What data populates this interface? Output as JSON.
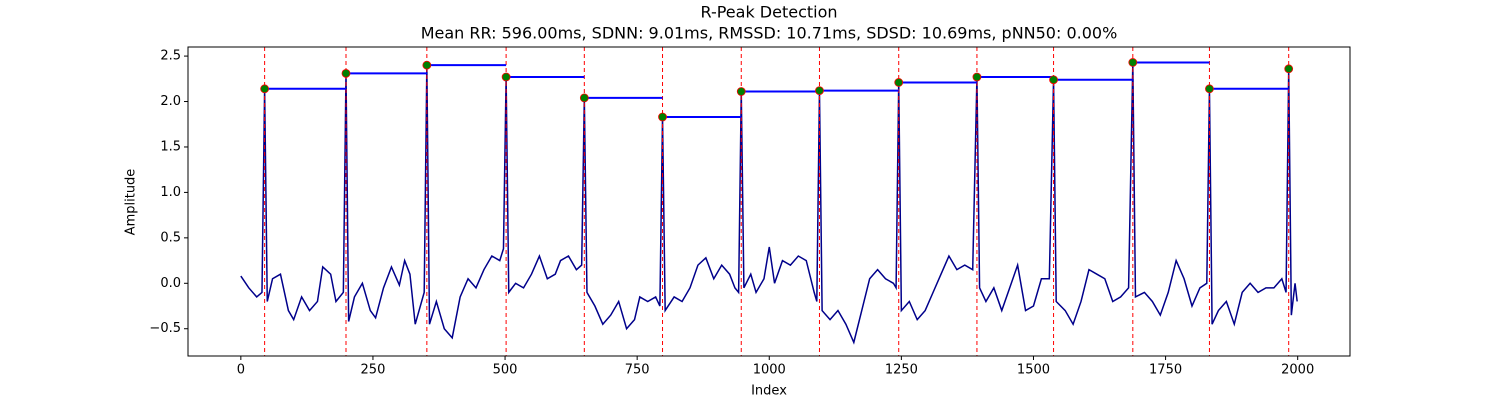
{
  "chart_data": {
    "type": "line",
    "title": "R-Peak Detection",
    "subtitle": "Mean RR: 596.00ms, SDNN: 9.01ms, RMSSD: 10.71ms, SDSD: 10.69ms, pNN50: 0.00%",
    "x_label": "Index",
    "y_label": "Amplitude",
    "x": [
      0,
      15,
      30,
      40,
      45,
      50,
      60,
      75,
      90,
      100,
      115,
      130,
      145,
      155,
      170,
      180,
      194,
      199,
      204,
      215,
      230,
      245,
      255,
      270,
      285,
      300,
      310,
      320,
      330,
      347,
      352,
      357,
      370,
      385,
      400,
      415,
      430,
      445,
      460,
      475,
      490,
      497,
      502,
      507,
      520,
      535,
      550,
      565,
      580,
      595,
      605,
      620,
      635,
      645,
      650,
      655,
      670,
      685,
      700,
      715,
      730,
      745,
      755,
      770,
      785,
      793,
      798,
      803,
      820,
      835,
      850,
      865,
      880,
      895,
      910,
      925,
      935,
      942,
      947,
      952,
      965,
      975,
      990,
      1000,
      1010,
      1025,
      1040,
      1055,
      1070,
      1085,
      1090,
      1095,
      1100,
      1115,
      1130,
      1145,
      1160,
      1175,
      1190,
      1205,
      1220,
      1235,
      1240,
      1245,
      1250,
      1265,
      1280,
      1295,
      1310,
      1325,
      1340,
      1355,
      1370,
      1385,
      1393,
      1398,
      1410,
      1425,
      1440,
      1455,
      1470,
      1485,
      1500,
      1515,
      1530,
      1538,
      1543,
      1560,
      1575,
      1590,
      1605,
      1620,
      1635,
      1650,
      1665,
      1680,
      1688,
      1693,
      1710,
      1725,
      1740,
      1755,
      1770,
      1785,
      1800,
      1815,
      1828,
      1833,
      1838,
      1850,
      1865,
      1880,
      1895,
      1910,
      1925,
      1940,
      1955,
      1970,
      1978,
      1983,
      1988,
      1995,
      1999
    ],
    "series": [
      {
        "color": "#00008b",
        "values": [
          0.08,
          -0.05,
          -0.15,
          -0.1,
          2.14,
          -0.2,
          0.05,
          0.1,
          -0.3,
          -0.4,
          -0.15,
          -0.3,
          -0.2,
          0.18,
          0.1,
          -0.2,
          -0.1,
          2.31,
          -0.42,
          -0.15,
          0,
          -0.3,
          -0.38,
          -0.05,
          0.18,
          -0.02,
          0.25,
          0.1,
          -0.45,
          -0.1,
          2.4,
          -0.45,
          -0.2,
          -0.5,
          -0.6,
          -0.15,
          0.05,
          -0.05,
          0.15,
          0.3,
          0.25,
          0.38,
          2.27,
          -0.1,
          0,
          -0.05,
          0.1,
          0.3,
          0.05,
          0.1,
          0.25,
          0.3,
          0.15,
          0.2,
          2.04,
          -0.1,
          -0.25,
          -0.45,
          -0.35,
          -0.2,
          -0.5,
          -0.4,
          -0.15,
          -0.2,
          -0.15,
          -0.25,
          1.83,
          -0.3,
          -0.15,
          -0.2,
          -0.05,
          0.2,
          0.28,
          0.05,
          0.2,
          0.1,
          -0.05,
          -0.1,
          2.11,
          -0.05,
          0.1,
          -0.1,
          0.05,
          0.4,
          0,
          0.25,
          0.2,
          0.3,
          0.25,
          -0.1,
          -0.2,
          2.12,
          -0.3,
          -0.4,
          -0.3,
          -0.45,
          -0.65,
          -0.3,
          0.05,
          0.15,
          0.05,
          0,
          -0.05,
          2.21,
          -0.3,
          -0.2,
          -0.4,
          -0.3,
          -0.1,
          0.1,
          0.3,
          0.15,
          0.2,
          0.15,
          2.27,
          -0.05,
          -0.2,
          -0.05,
          -0.3,
          -0.05,
          0.2,
          -0.3,
          -0.25,
          0.05,
          0.05,
          2.24,
          -0.2,
          -0.3,
          -0.45,
          -0.2,
          0.15,
          0.1,
          0.05,
          -0.2,
          -0.15,
          -0.05,
          2.43,
          -0.15,
          -0.1,
          -0.2,
          -0.35,
          -0.1,
          0.25,
          0.05,
          -0.25,
          -0.05,
          0,
          2.14,
          -0.45,
          -0.3,
          -0.2,
          -0.45,
          -0.1,
          0,
          -0.1,
          -0.05,
          -0.05,
          0.05,
          -0.1,
          2.36,
          -0.35,
          0,
          -0.2
        ]
      }
    ],
    "peaks": {
      "color": "green",
      "line_color": "red",
      "segment_color": "blue",
      "x": [
        45,
        199,
        352,
        502,
        650,
        798,
        947,
        1095,
        1245,
        1393,
        1538,
        1688,
        1833,
        1983
      ],
      "values": [
        2.14,
        2.31,
        2.4,
        2.27,
        2.04,
        1.83,
        2.11,
        2.12,
        2.21,
        2.27,
        2.24,
        2.43,
        2.14,
        2.36
      ]
    },
    "xlim": [
      -100,
      2099
    ],
    "ylim": [
      -0.8,
      2.6
    ],
    "xticks": [
      0,
      250,
      500,
      750,
      1000,
      1250,
      1500,
      1750,
      2000
    ],
    "yticks": [
      {
        "value": -0.5,
        "label": "−0.5"
      },
      {
        "value": 0,
        "label": "0.0"
      },
      0.5,
      {
        "value": 1,
        "label": "1.0"
      },
      1.5,
      {
        "value": 2,
        "label": "2.0"
      },
      2.5
    ]
  }
}
